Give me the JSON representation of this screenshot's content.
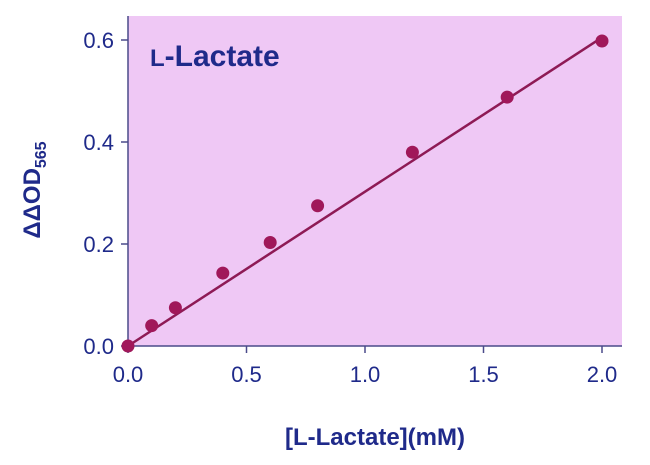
{
  "chart_data": {
    "type": "scatter",
    "title_prefix": "L",
    "title_rest": "-Lactate",
    "xlabel": "[L-Lactate](mM)",
    "ylabel_main": "ΔΔOD",
    "ylabel_sub": "565",
    "xlim": [
      0,
      2.0
    ],
    "ylim": [
      0,
      0.6
    ],
    "x_ticks": [
      "0.0",
      "0.5",
      "1.0",
      "1.5",
      "2.0"
    ],
    "y_ticks": [
      "0.0",
      "0.2",
      "0.4",
      "0.6"
    ],
    "grid": false,
    "series": [
      {
        "x": [
          0,
          0.1,
          0.2,
          0.4,
          0.6,
          0.8,
          1.2,
          1.6,
          2.0
        ],
        "y": [
          0.0,
          0.04,
          0.075,
          0.143,
          0.203,
          0.275,
          0.38,
          0.488,
          0.598
        ]
      }
    ],
    "fit_line": {
      "x": [
        0,
        2.0
      ],
      "y": [
        0.0,
        0.605
      ]
    },
    "colors": {
      "plot_background": "#efc8f5",
      "marker": "#a0185a",
      "line": "#8e1a55",
      "text": "#1f2a8a",
      "axis": "#4a4a8a"
    }
  }
}
